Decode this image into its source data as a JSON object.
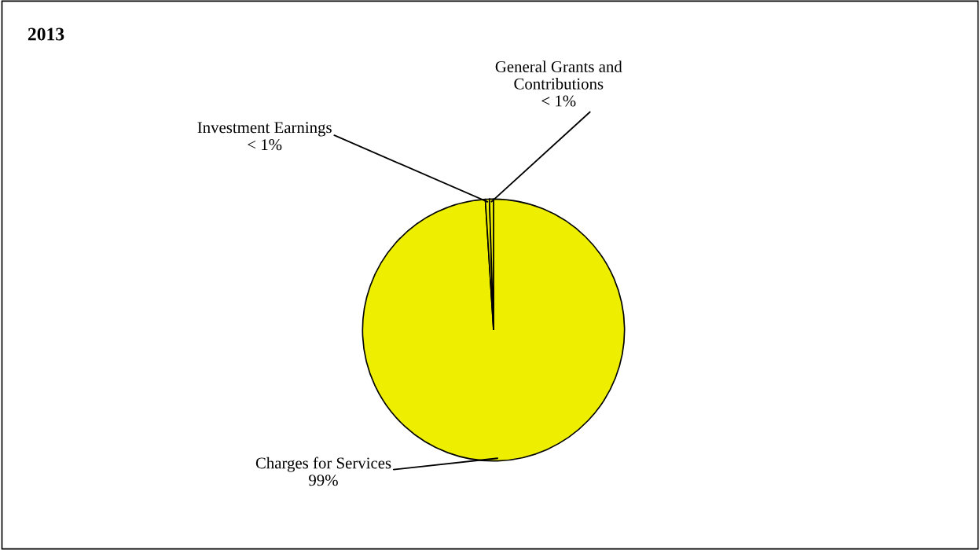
{
  "chart_data": {
    "type": "pie",
    "title": "2013",
    "categories": [
      "Charges for Services",
      "Investment Earnings",
      "General Grants and\nContributions"
    ],
    "values": [
      99,
      0.5,
      0.5
    ],
    "value_labels": [
      "99%",
      "< 1%",
      "< 1%"
    ],
    "colors": [
      "#eeee00",
      "#eeee00",
      "#eeee00"
    ]
  }
}
